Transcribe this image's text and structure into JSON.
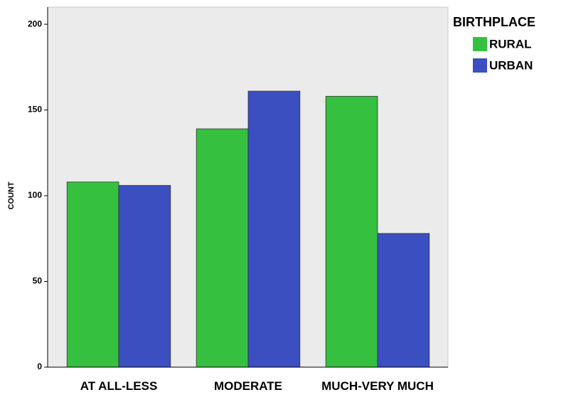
{
  "chart_data": {
    "type": "bar",
    "y_label": "COUNT",
    "legend_title": "BIRTHPLACE",
    "categories": [
      "AT ALL-LESS",
      "MODERATE",
      "MUCH-VERY MUCH"
    ],
    "series": [
      {
        "name": "RURAL",
        "color": "#35c040",
        "values": [
          108,
          139,
          158
        ]
      },
      {
        "name": "URBAN",
        "color": "#3b4fc0",
        "values": [
          106,
          161,
          78
        ]
      }
    ],
    "ylim": [
      0,
      210
    ],
    "yticks": [
      0,
      50,
      100,
      150,
      200
    ],
    "legend": "right"
  }
}
